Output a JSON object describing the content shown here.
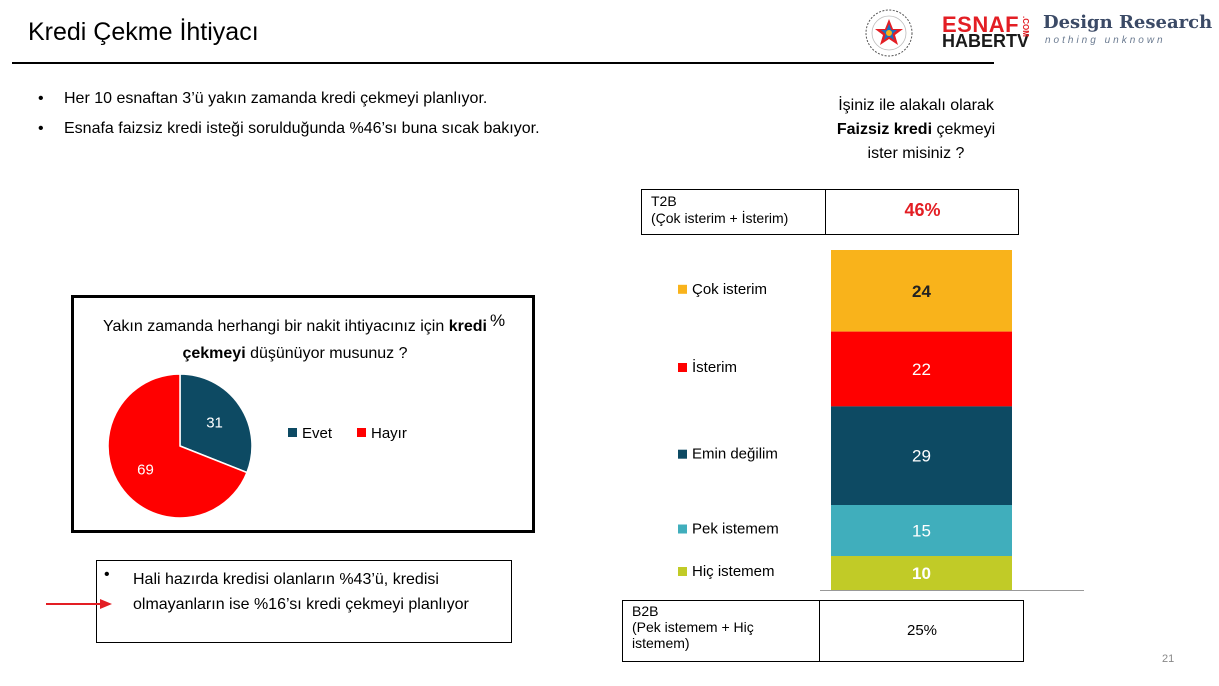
{
  "header": {
    "title": "Kredi Çekme İhtiyacı",
    "logo_esnaf": "ESNAF",
    "logo_haber": "HABERTV",
    "logo_com": ".COM",
    "logo_design": "Design Research",
    "logo_tagline": "nothing unknown"
  },
  "bullets": [
    "Her 10 esnaftan 3’ü yakın zamanda kredi çekmeyi planlıyor.",
    "Esnafa faizsiz kredi isteği sorulduğunda %46’sı buna sıcak bakıyor."
  ],
  "pie_panel": {
    "question_pre": "Yakın zamanda herhangi bir nakit ihtiyacınız için ",
    "question_bold": "kredi çekmeyi",
    "question_post": " düşünüyor musunuz ?",
    "unit": "%"
  },
  "callout": {
    "text": "Hali hazırda kredisi olanların %43’ü, kredisi olmayanların ise %16’sı kredi çekmeyi planlıyor"
  },
  "right_panel": {
    "question_line1": "İşiniz ile alakalı olarak",
    "question_bold": "Faizsiz kredi",
    "question_line2_rest": " çekmeyi",
    "question_line3": "ister misiniz ?",
    "t2b_label_1": "T2B",
    "t2b_label_2": "(Çok isterim + İsterim)",
    "t2b_value": "46%",
    "b2b_label_1": "B2B",
    "b2b_label_2": "(Pek istemem + Hiç",
    "b2b_label_3": "istemem)",
    "b2b_value": "25%"
  },
  "page_number": "21",
  "colors": {
    "evet": "#0d4a63",
    "hayir": "#ff0000",
    "cok_isterim": "#f9b31b",
    "isterim": "#ff0000",
    "emin_degilim": "#0d4a63",
    "pek_istemem": "#40aebc",
    "hic_istemem": "#c1cb27"
  },
  "chart_data": [
    {
      "type": "pie",
      "categories": [
        "Evet",
        "Hayır"
      ],
      "values": [
        31,
        69
      ],
      "colors": [
        "#0d4a63",
        "#ff0000"
      ],
      "legend": "right"
    },
    {
      "type": "bar",
      "stacked": true,
      "categories": [
        "Çok isterim",
        "İsterim",
        "Emin değilim",
        "Pek istemem",
        "Hiç istemem"
      ],
      "values": [
        24,
        22,
        29,
        15,
        10
      ],
      "colors": [
        "#f9b31b",
        "#ff0000",
        "#0d4a63",
        "#40aebc",
        "#c1cb27"
      ],
      "label_colors": [
        "#222222",
        "#ffffff",
        "#ffffff",
        "#ffffff",
        "#ffffff"
      ],
      "legend": "left"
    }
  ]
}
